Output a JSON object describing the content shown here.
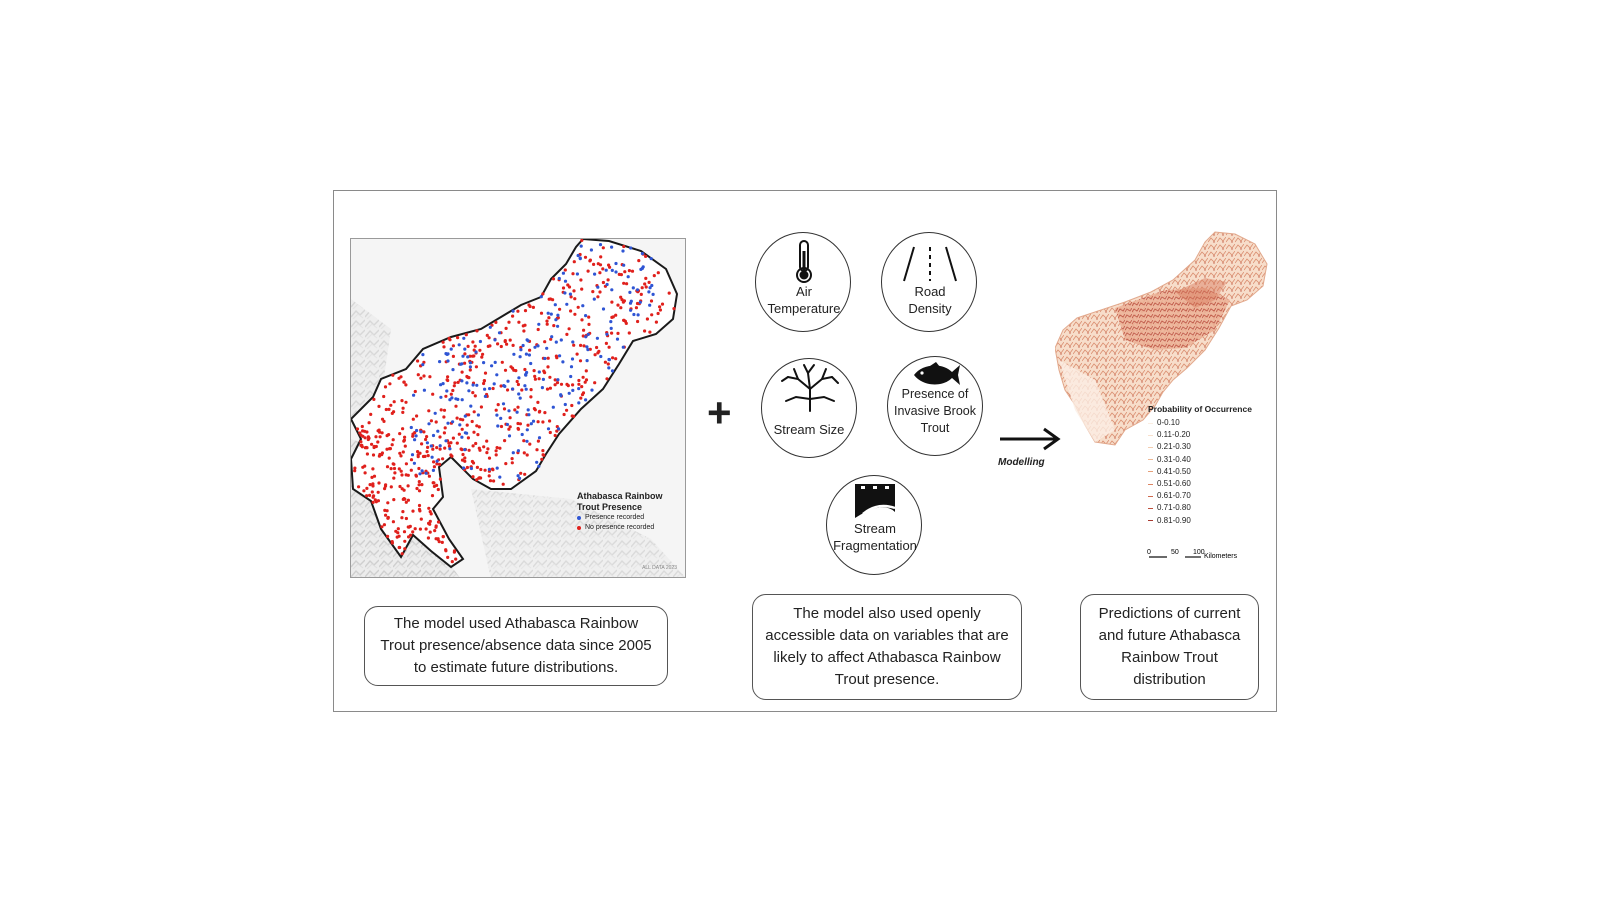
{
  "left_map": {
    "legend_title": "Athabasca Rainbow Trout Presence",
    "legend_items": [
      {
        "label": "Presence recorded",
        "color": "#2f55d4"
      },
      {
        "label": "No presence recorded",
        "color": "#e0201c"
      }
    ],
    "credit": "ALL DATA 2023"
  },
  "plus_symbol": "+",
  "variables": [
    {
      "label": "Air Temperature",
      "icon": "thermometer-icon"
    },
    {
      "label": "Road Density",
      "icon": "road-icon"
    },
    {
      "label": "Stream Size",
      "icon": "stream-network-icon"
    },
    {
      "label": "Presence of Invasive Brook Trout",
      "icon": "fish-icon"
    },
    {
      "label": "Stream Fragmentation",
      "icon": "dam-icon"
    }
  ],
  "arrow_label": "Modelling",
  "right_map": {
    "legend_title": "Probability of Occurrence",
    "legend_items": [
      "0-0.10",
      "0.11-0.20",
      "0.21-0.30",
      "0.31-0.40",
      "0.41-0.50",
      "0.51-0.60",
      "0.61-0.70",
      "0.71-0.80",
      "0.81-0.90"
    ],
    "legend_colors": [
      "#fbeee2",
      "#f8e0cc",
      "#f3cdb0",
      "#eeb894",
      "#e6a07a",
      "#dc8563",
      "#cf6a4e",
      "#bf503d",
      "#a8392f"
    ],
    "scale_ticks": [
      "0",
      "50",
      "100"
    ],
    "scale_unit": "Kilometers"
  },
  "captions": {
    "left": "The model used Athabasca Rainbow Trout presence/absence data since 2005 to estimate future distributions.",
    "middle": "The model also used openly accessible data on variables that are likely to affect Athabasca Rainbow Trout presence.",
    "right": "Predictions of current and future Athabasca Rainbow Trout distribution"
  }
}
